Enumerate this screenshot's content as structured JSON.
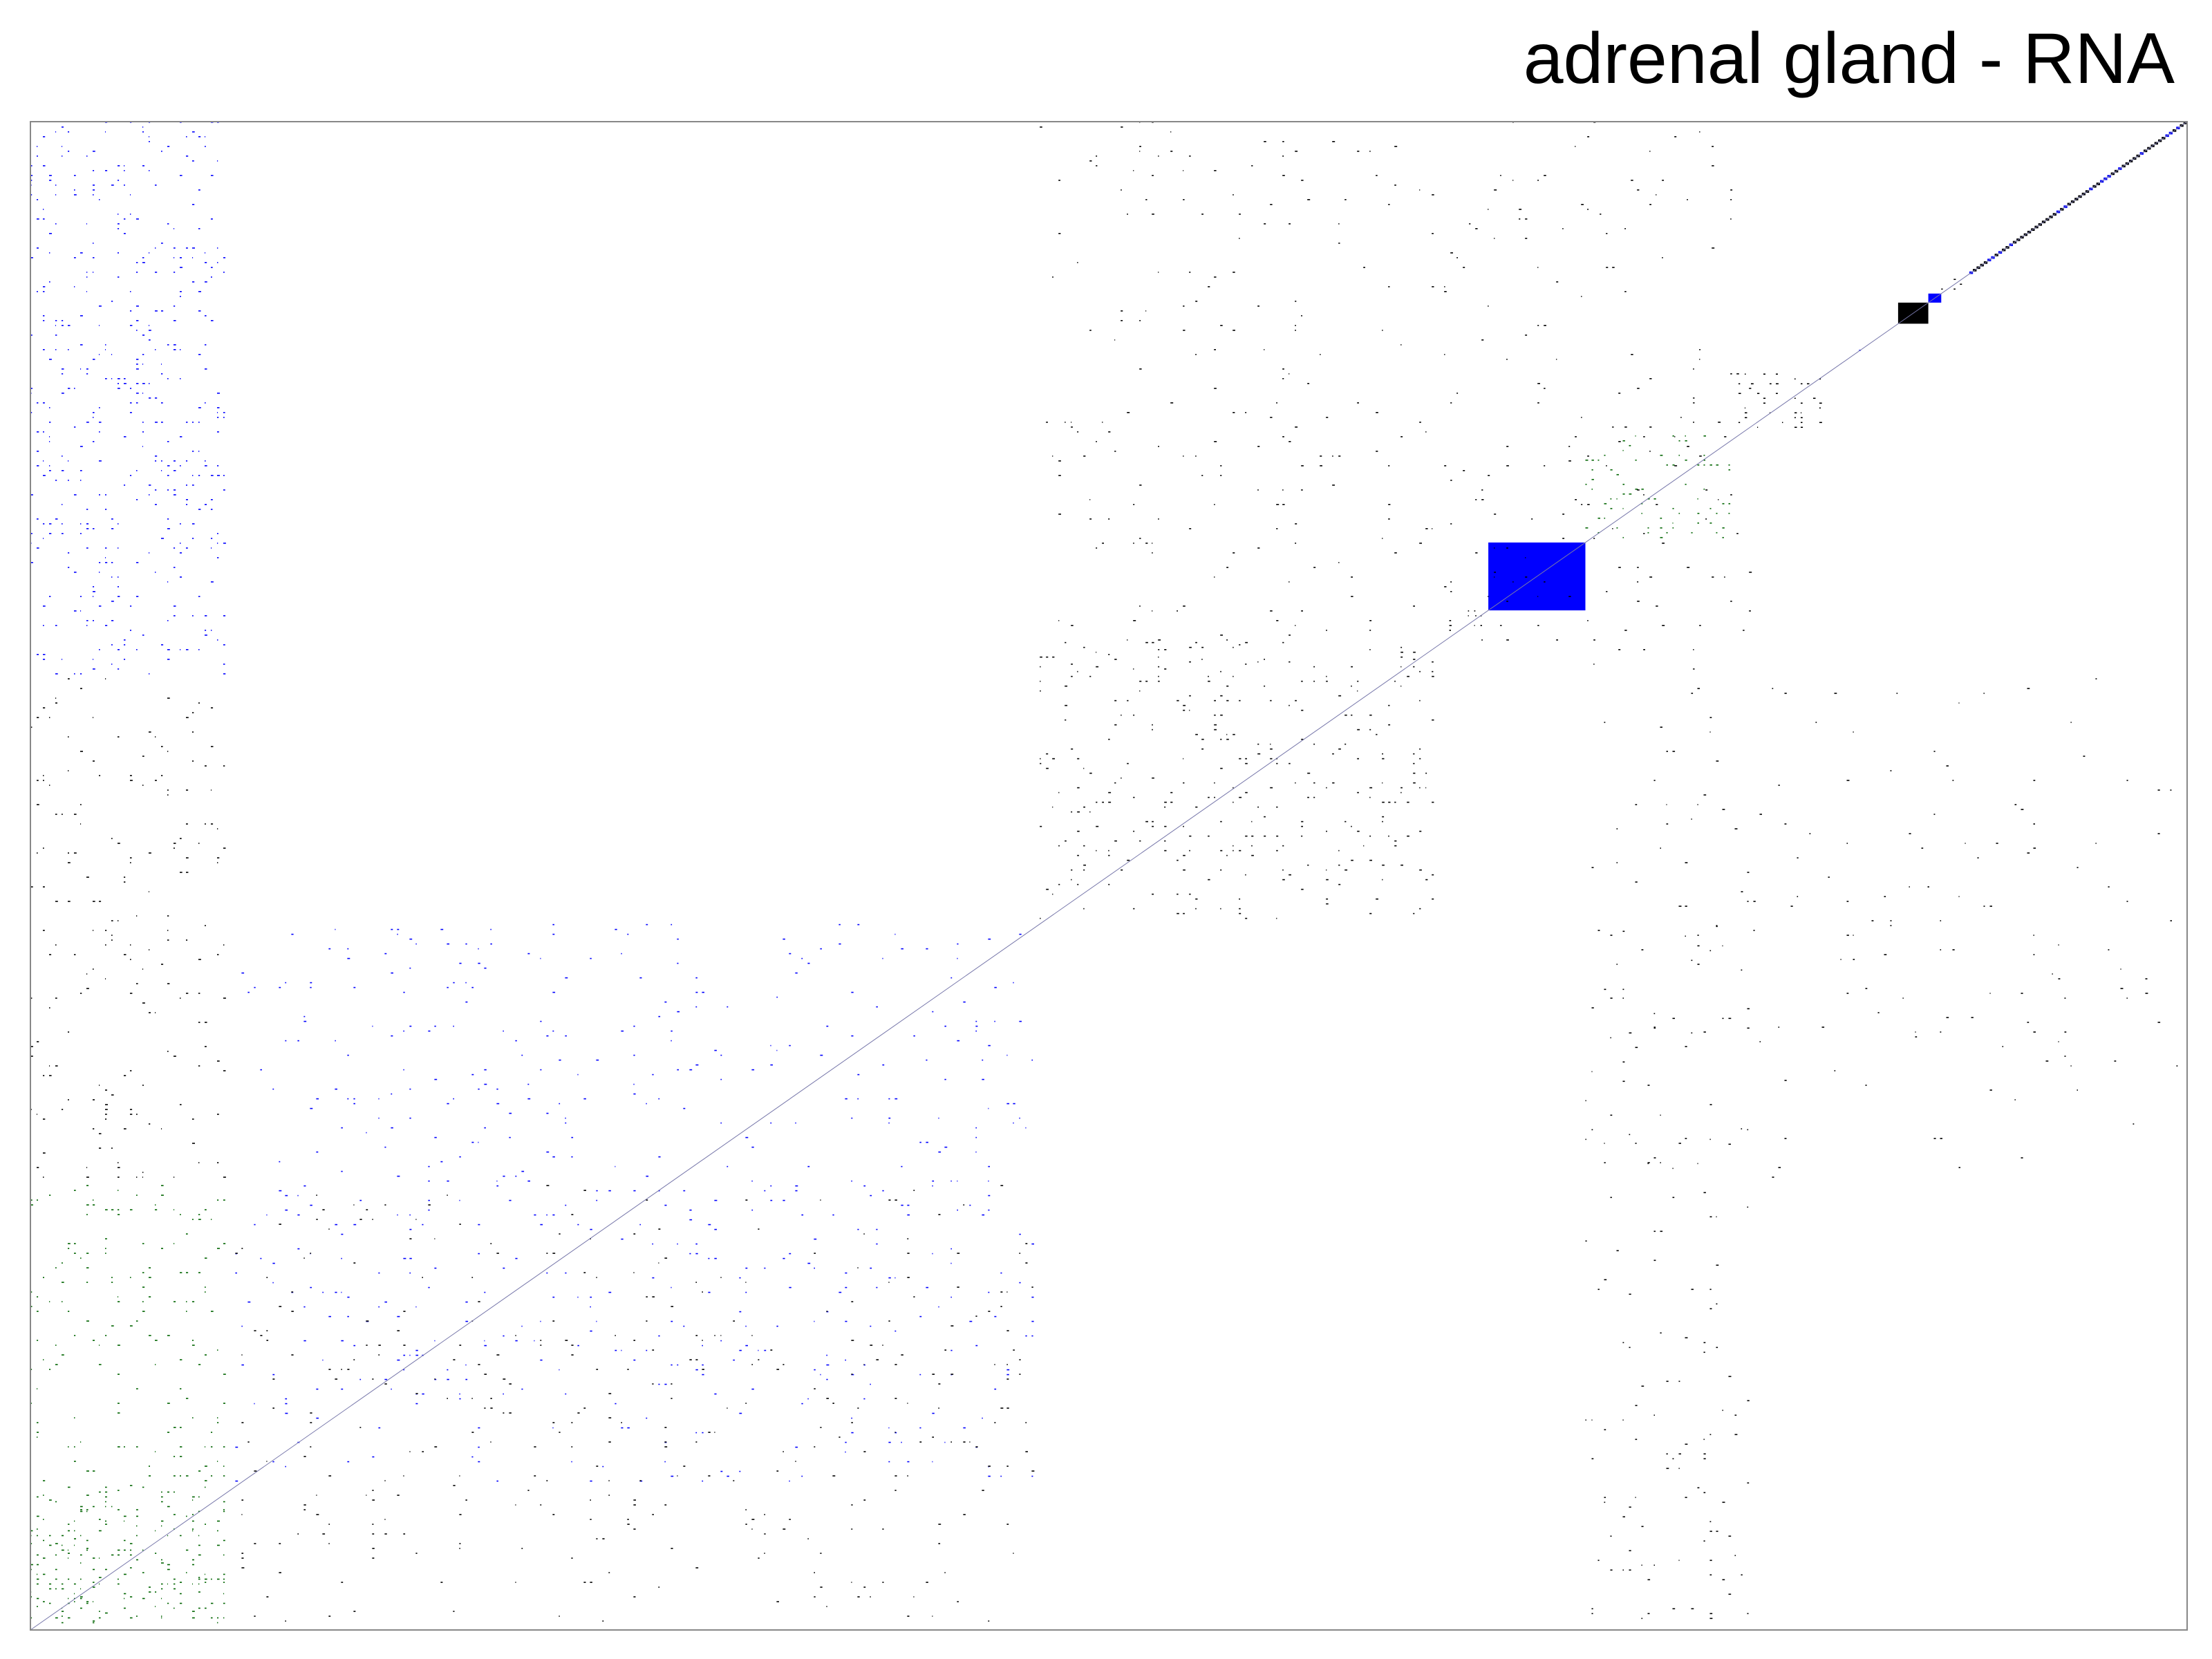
{
  "chart_data": {
    "type": "heatmap",
    "title": "adrenal gland - RNA",
    "xlabel": "",
    "ylabel": "",
    "matrix_size": 1000,
    "colors": {
      "background": "#ffffff",
      "frame": "#888888",
      "black": "#000000",
      "blue": "#0000ff",
      "green": "#006400"
    },
    "blocks": [
      {
        "id": "cluster-a",
        "start": 0,
        "end": 95,
        "color": "green",
        "density": 0.55,
        "fill": "sparse-dots"
      },
      {
        "id": "cluster-b",
        "start": 95,
        "end": 468,
        "color": "blue",
        "density": 0.18,
        "fill": "sparse-dots"
      },
      {
        "id": "cluster-c",
        "start": 468,
        "end": 655,
        "color": "black",
        "density": 0.22,
        "fill": "sparse-dots"
      },
      {
        "id": "cluster-d",
        "start": 655,
        "end": 676,
        "color": "black",
        "density": 0.25,
        "fill": "sparse-dots"
      },
      {
        "id": "cluster-e",
        "start": 676,
        "end": 721,
        "color": "blue",
        "density": 1.0,
        "fill": "solid"
      },
      {
        "id": "cluster-f",
        "start": 721,
        "end": 792,
        "color": "green",
        "density": 0.45,
        "fill": "sparse-dots"
      },
      {
        "id": "cluster-g",
        "start": 792,
        "end": 833,
        "color": "black",
        "density": 0.6,
        "fill": "sparse-dots"
      },
      {
        "id": "cluster-h",
        "start": 833,
        "end": 845,
        "color": "black",
        "density": 0.3,
        "fill": "sparse-dots"
      },
      {
        "id": "cluster-i",
        "start": 845,
        "end": 852,
        "color": "blue",
        "density": 0.6,
        "fill": "sparse-dots"
      },
      {
        "id": "cluster-j",
        "start": 852,
        "end": 866,
        "color": "black",
        "density": 0.25,
        "fill": "sparse-dots"
      },
      {
        "id": "cluster-k",
        "start": 866,
        "end": 880,
        "color": "black",
        "density": 1.0,
        "fill": "solid"
      },
      {
        "id": "cluster-l",
        "start": 880,
        "end": 886,
        "color": "blue",
        "density": 1.0,
        "fill": "solid"
      },
      {
        "id": "cluster-m",
        "start": 886,
        "end": 899,
        "color": "black",
        "density": 0.7,
        "fill": "sparse-dots"
      },
      {
        "id": "cluster-n",
        "start": 899,
        "end": 1000,
        "color": "black",
        "density": 0.4,
        "fill": "diagonal"
      }
    ],
    "off_diagonal_bands": [
      {
        "rows": [
          631,
          1000
        ],
        "cols": [
          0,
          95
        ],
        "color": "blue",
        "density": 0.08
      },
      {
        "rows": [
          295,
          631
        ],
        "cols": [
          0,
          95
        ],
        "color": "black",
        "density": 0.04
      },
      {
        "rows": [
          0,
          295
        ],
        "cols": [
          0,
          95
        ],
        "color": "green",
        "density": 0.05
      },
      {
        "rows": [
          631,
          1000
        ],
        "cols": [
          468,
          800
        ],
        "color": "black",
        "density": 0.03
      },
      {
        "rows": [
          0,
          295
        ],
        "cols": [
          95,
          468
        ],
        "color": "black",
        "density": 0.03
      },
      {
        "rows": [
          295,
          631
        ],
        "cols": [
          721,
          1000
        ],
        "color": "black",
        "density": 0.015
      },
      {
        "rows": [
          0,
          470
        ],
        "cols": [
          721,
          800
        ],
        "color": "black",
        "density": 0.02
      }
    ]
  }
}
